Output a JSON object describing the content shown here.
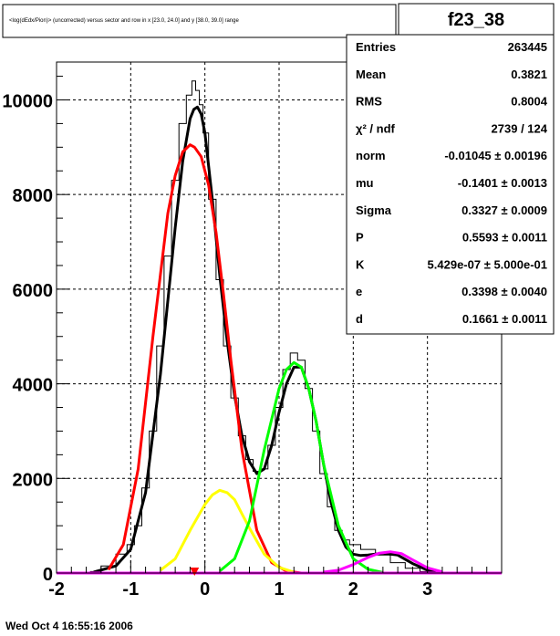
{
  "title_box": {
    "text": "<log(dEdx/Pion)> (uncorrected) versus sector and row in x [23.0, 24.0] and y [38.0, 39.0] range"
  },
  "stats": {
    "name": "f23_38",
    "rows": [
      {
        "label": "Entries",
        "value": "263445"
      },
      {
        "label": "Mean",
        "value": "0.3821"
      },
      {
        "label": "RMS",
        "value": "0.8004"
      },
      {
        "label": "χ² / ndf",
        "value": "2739 / 124"
      },
      {
        "label": "norm",
        "value": "-0.01045  ± 0.00196"
      },
      {
        "label": "mu",
        "value": "-0.1401  ± 0.0013"
      },
      {
        "label": "Sigma",
        "value": "0.3327  ± 0.0009"
      },
      {
        "label": "P",
        "value": "0.5593  ± 0.0011"
      },
      {
        "label": "K",
        "value": "5.429e-07  ± 5.000e-01"
      },
      {
        "label": "e",
        "value": "0.3398  ± 0.0040"
      },
      {
        "label": "d",
        "value": "0.1661  ± 0.0011"
      }
    ]
  },
  "date": "Wed Oct  4 16:55:16 2006",
  "colors": {
    "total": "#000000",
    "pion": "#ff0000",
    "yellow": "#ffff00",
    "green": "#00ff00",
    "magenta": "#ff00ff",
    "marker": "#ff0000",
    "hist": "#000000"
  },
  "chart_data": {
    "type": "line",
    "xlim": [
      -2.0,
      4.0
    ],
    "ylim": [
      0,
      10800
    ],
    "xticks": [
      -2,
      -1,
      0,
      1,
      2,
      3
    ],
    "yticks": [
      0,
      2000,
      4000,
      6000,
      8000,
      10000
    ],
    "grid": true,
    "histogram": {
      "x": [
        -1.5,
        -1.3,
        -1.1,
        -1.0,
        -0.9,
        -0.8,
        -0.7,
        -0.6,
        -0.5,
        -0.4,
        -0.3,
        -0.2,
        -0.15,
        -0.1,
        -0.05,
        0.0,
        0.1,
        0.2,
        0.3,
        0.4,
        0.5,
        0.6,
        0.7,
        0.8,
        0.9,
        1.0,
        1.1,
        1.2,
        1.3,
        1.4,
        1.5,
        1.6,
        1.7,
        1.8,
        1.9,
        2.0,
        2.2,
        2.4,
        2.6,
        2.8,
        3.0
      ],
      "y": [
        30,
        150,
        400,
        600,
        1000,
        1800,
        3000,
        4800,
        6700,
        8300,
        9500,
        10100,
        10400,
        10200,
        9900,
        9300,
        7900,
        6200,
        4800,
        3700,
        2900,
        2400,
        2150,
        2200,
        2700,
        3500,
        4300,
        4650,
        4500,
        3900,
        3000,
        2100,
        1400,
        900,
        700,
        600,
        500,
        380,
        220,
        100,
        30
      ]
    },
    "series": [
      {
        "name": "",
        "color": "#000000",
        "x": [
          -1.5,
          -1.2,
          -1.0,
          -0.8,
          -0.6,
          -0.4,
          -0.3,
          -0.2,
          -0.15,
          -0.1,
          -0.05,
          0.0,
          0.1,
          0.2,
          0.3,
          0.4,
          0.5,
          0.6,
          0.7,
          0.8,
          0.9,
          1.0,
          1.1,
          1.2,
          1.3,
          1.4,
          1.5,
          1.6,
          1.7,
          1.8,
          1.9,
          2.0,
          2.1,
          2.2,
          2.4,
          2.6,
          2.8,
          3.0,
          3.2
        ],
        "y": [
          20,
          150,
          500,
          1700,
          4200,
          7300,
          8700,
          9600,
          9800,
          9850,
          9700,
          9300,
          7900,
          6300,
          4900,
          3750,
          2900,
          2350,
          2100,
          2200,
          2700,
          3400,
          4000,
          4350,
          4350,
          3900,
          3200,
          2300,
          1500,
          900,
          550,
          400,
          370,
          380,
          420,
          380,
          200,
          60,
          10
        ]
      },
      {
        "name": "",
        "color": "#ff0000",
        "x": [
          -1.3,
          -1.1,
          -0.9,
          -0.7,
          -0.5,
          -0.4,
          -0.3,
          -0.2,
          -0.14,
          -0.05,
          0.05,
          0.15,
          0.25,
          0.35,
          0.5,
          0.7,
          0.9,
          1.1,
          1.3
        ],
        "y": [
          70,
          600,
          2200,
          5000,
          7600,
          8400,
          8900,
          9050,
          9000,
          8800,
          8200,
          7200,
          5900,
          4500,
          2600,
          900,
          220,
          40,
          0
        ]
      },
      {
        "name": "",
        "color": "#ffff00",
        "x": [
          -0.6,
          -0.4,
          -0.2,
          0.0,
          0.1,
          0.2,
          0.3,
          0.4,
          0.5,
          0.6,
          0.8,
          1.0,
          1.2
        ],
        "y": [
          60,
          300,
          900,
          1450,
          1650,
          1750,
          1700,
          1550,
          1250,
          950,
          400,
          120,
          20
        ]
      },
      {
        "name": "",
        "color": "#00ff00",
        "x": [
          0.2,
          0.4,
          0.6,
          0.8,
          1.0,
          1.1,
          1.2,
          1.3,
          1.4,
          1.5,
          1.6,
          1.8,
          2.0,
          2.2,
          2.4
        ],
        "y": [
          40,
          300,
          1100,
          2600,
          3900,
          4300,
          4450,
          4350,
          3900,
          3200,
          2300,
          1000,
          300,
          80,
          10
        ]
      },
      {
        "name": "",
        "color": "#ff00ff",
        "x": [
          1.6,
          1.8,
          2.0,
          2.2,
          2.35,
          2.5,
          2.65,
          2.8,
          3.0,
          3.2
        ],
        "y": [
          20,
          60,
          180,
          330,
          420,
          450,
          410,
          280,
          110,
          25
        ]
      },
      {
        "name": "",
        "color": "#ff00ff",
        "x": [
          -2.0,
          4.0
        ],
        "y": [
          0,
          0
        ]
      }
    ],
    "marker": {
      "x": -0.14,
      "y": 0
    }
  }
}
